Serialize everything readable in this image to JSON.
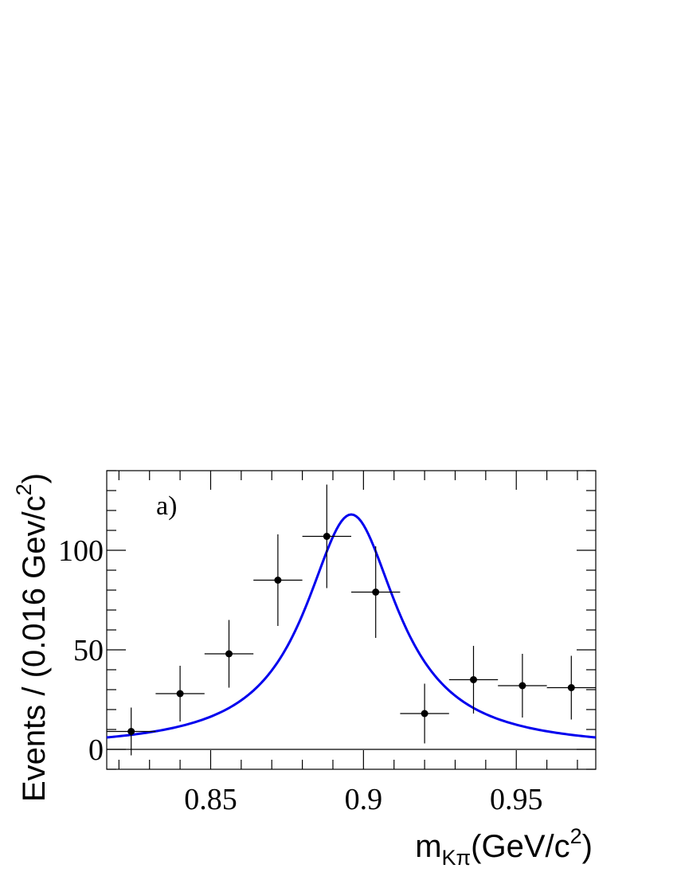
{
  "chart_data": {
    "type": "scatter",
    "panel_label": "a)",
    "xlabel": {
      "main": "m",
      "sub": "Kπ",
      "unit_open": "(GeV/c",
      "unit_sup": "2",
      "unit_close": ")"
    },
    "ylabel": {
      "main": "Events / (0.016 Gev/c",
      "sup": "2",
      "close": ")"
    },
    "xlim": [
      0.816,
      0.976
    ],
    "ylim": [
      -10,
      140
    ],
    "x_ticks": [
      {
        "value": 0.85,
        "label": "0.85"
      },
      {
        "value": 0.9,
        "label": "0.9"
      },
      {
        "value": 0.95,
        "label": "0.95"
      }
    ],
    "y_ticks": [
      {
        "value": 0,
        "label": "0"
      },
      {
        "value": 50,
        "label": "50"
      },
      {
        "value": 100,
        "label": "100"
      }
    ],
    "bin_half_width": 0.008,
    "points": [
      {
        "x": 0.824,
        "y": 9,
        "err": 12
      },
      {
        "x": 0.84,
        "y": 28,
        "err": 14
      },
      {
        "x": 0.856,
        "y": 48,
        "err": 17
      },
      {
        "x": 0.872,
        "y": 85,
        "err": 23
      },
      {
        "x": 0.888,
        "y": 107,
        "err": 26
      },
      {
        "x": 0.904,
        "y": 79,
        "err": 23
      },
      {
        "x": 0.92,
        "y": 18,
        "err": 15
      },
      {
        "x": 0.936,
        "y": 35,
        "err": 17
      },
      {
        "x": 0.952,
        "y": 32,
        "err": 16
      },
      {
        "x": 0.968,
        "y": 31,
        "err": 16
      }
    ],
    "fit_curve": {
      "color": "#0000ee",
      "peak_x": 0.896,
      "peak_y": 118,
      "half_width": 0.0185,
      "baseline": 0,
      "range": [
        0.816,
        0.976
      ]
    },
    "zero_line": true,
    "grid": false
  }
}
